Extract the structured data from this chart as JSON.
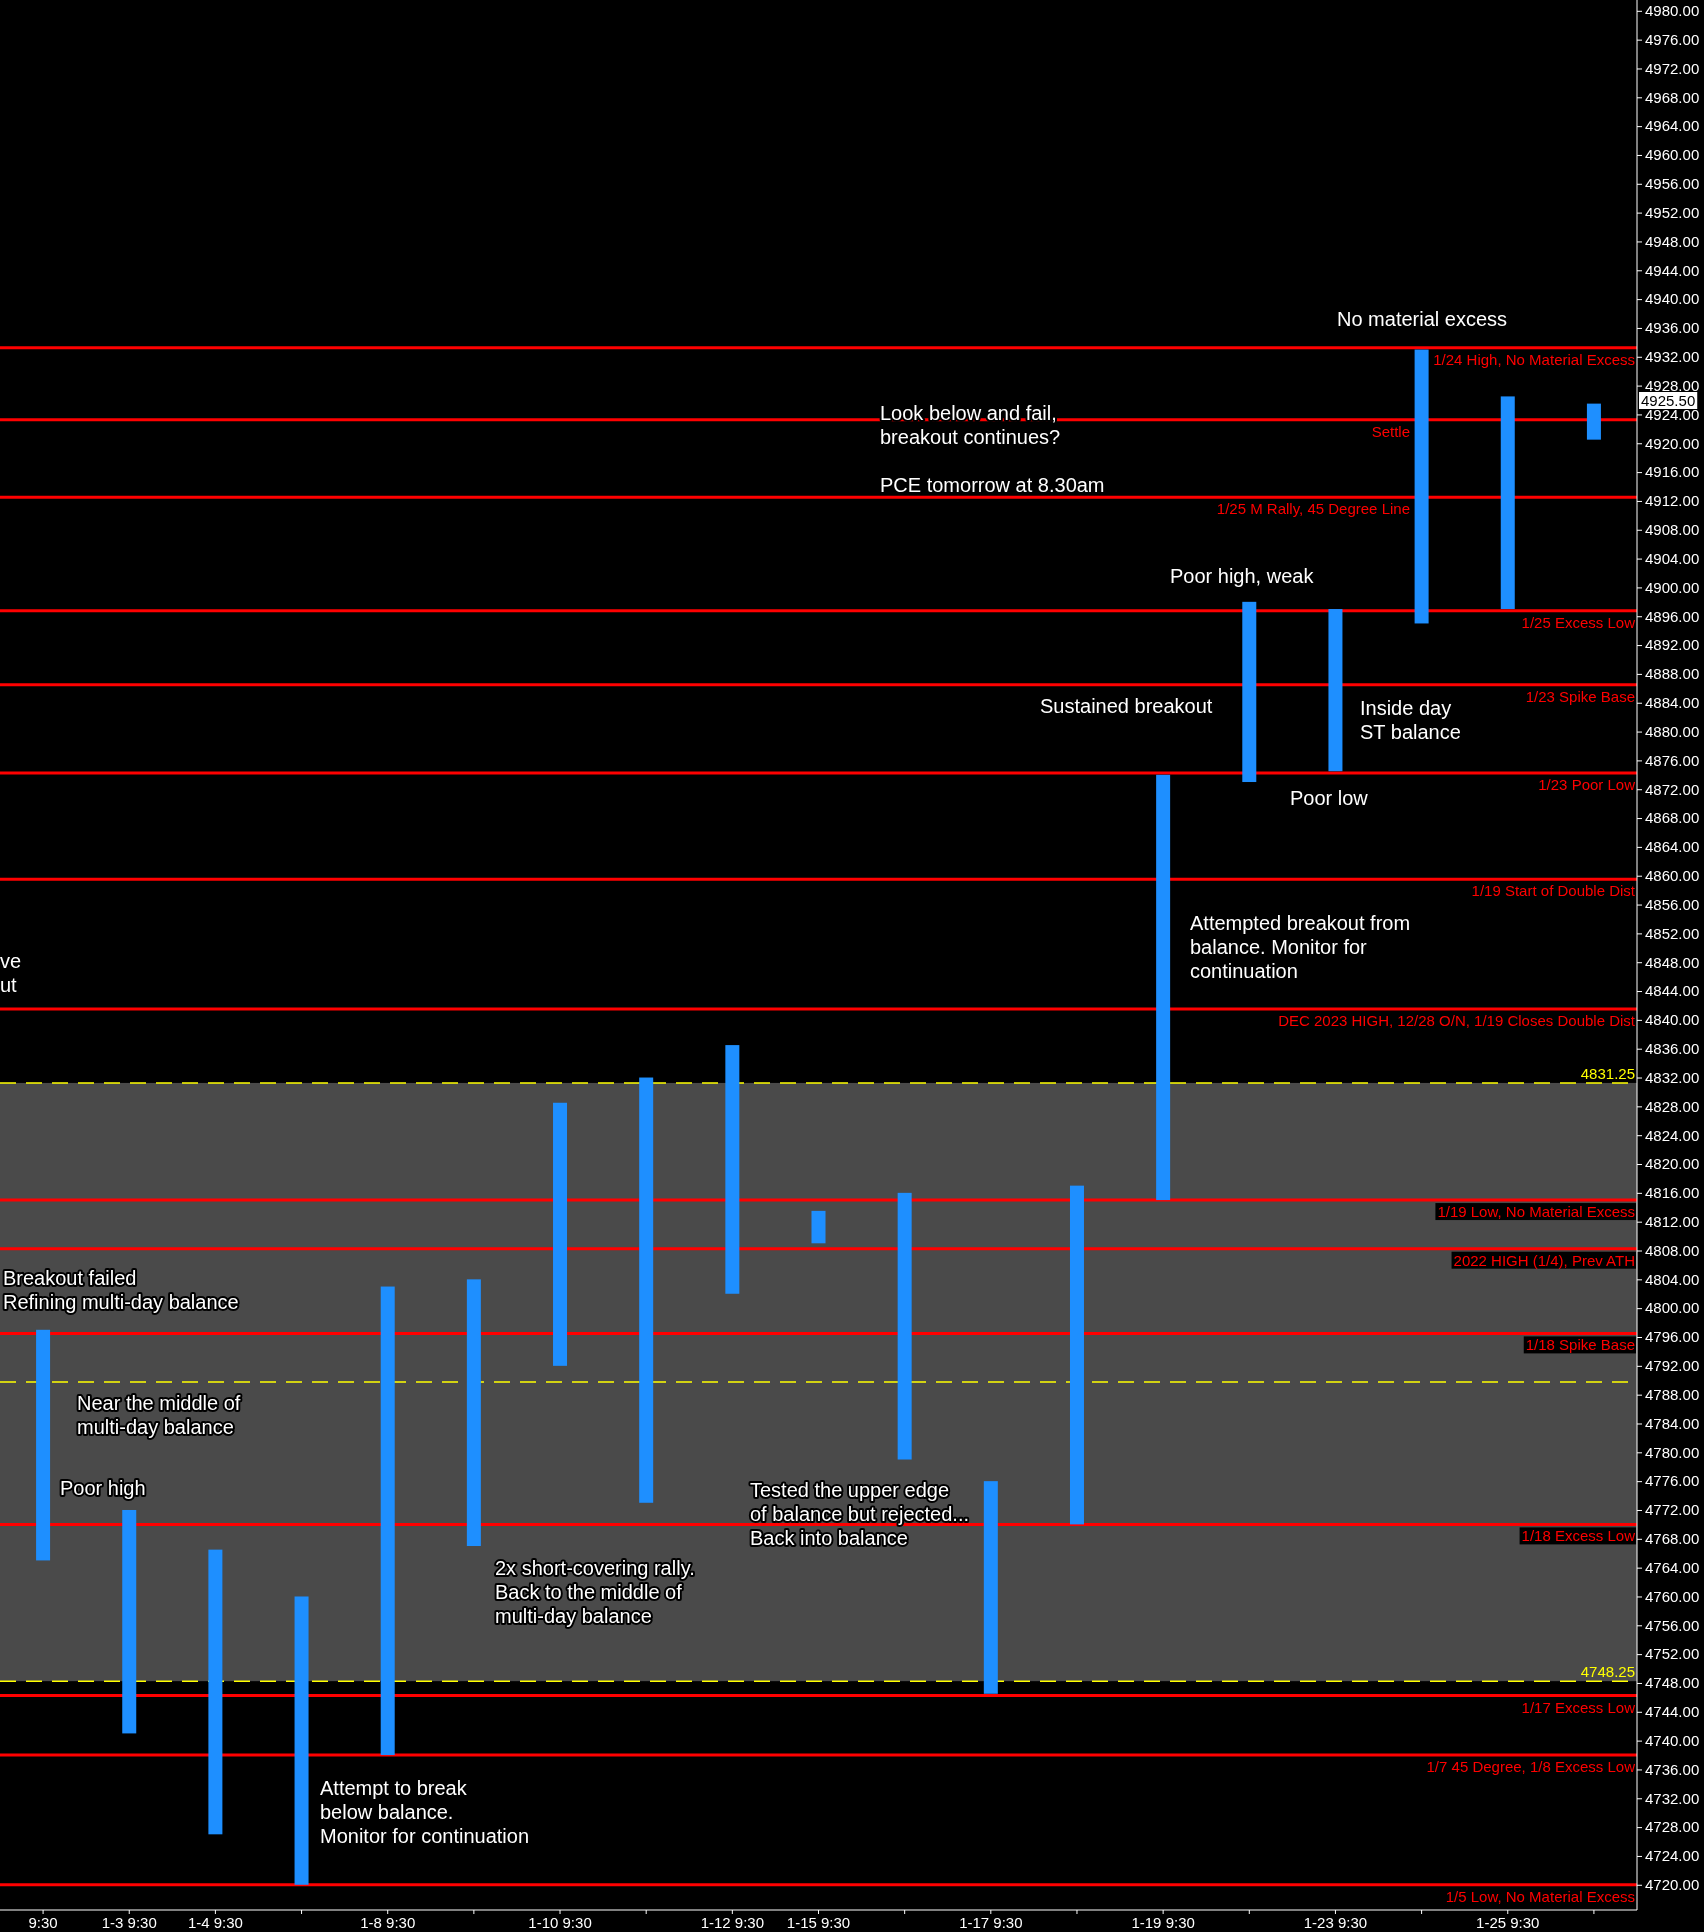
{
  "chart_data": {
    "type": "bar",
    "categories": [
      "9:30",
      "1-3 9:30",
      "1-4 9:30",
      null,
      "1-8 9:30",
      null,
      "1-10 9:30",
      null,
      "1-12 9:30",
      "1-15 9:30",
      null,
      "1-17 9:30",
      null,
      "1-19 9:30",
      null,
      "1-23 9:30",
      null,
      "1-25 9:30",
      null
    ],
    "base": [
      4765,
      4741,
      4727,
      4720,
      4738,
      4767,
      4792,
      4773,
      4802,
      4809,
      4779,
      4746.5,
      4770,
      4815,
      4873,
      4874.5,
      4895,
      4897,
      4920.5
    ],
    "values": [
      32,
      31,
      39.5,
      40,
      65,
      37,
      36.5,
      59,
      34.5,
      4.5,
      37,
      29.5,
      47,
      59,
      25,
      22.5,
      38,
      29.5,
      5
    ],
    "color": "#1e8fff",
    "ylim": [
      4716.5,
      4981.5
    ],
    "yticks": [
      {
        "value": 4720,
        "label": "4720.00"
      },
      {
        "value": 4724,
        "label": "4724.00"
      },
      {
        "value": 4728,
        "label": "4728.00"
      },
      {
        "value": 4732,
        "label": "4732.00"
      },
      {
        "value": 4736,
        "label": "4736.00"
      },
      {
        "value": 4740,
        "label": "4740.00"
      },
      {
        "value": 4744,
        "label": "4744.00"
      },
      {
        "value": 4748,
        "label": "4748.00"
      },
      {
        "value": 4752,
        "label": "4752.00"
      },
      {
        "value": 4756,
        "label": "4756.00"
      },
      {
        "value": 4760,
        "label": "4760.00"
      },
      {
        "value": 4764,
        "label": "4764.00"
      },
      {
        "value": 4768,
        "label": "4768.00"
      },
      {
        "value": 4772,
        "label": "4772.00"
      },
      {
        "value": 4776,
        "label": "4776.00"
      },
      {
        "value": 4780,
        "label": "4780.00"
      },
      {
        "value": 4784,
        "label": "4784.00"
      },
      {
        "value": 4788,
        "label": "4788.00"
      },
      {
        "value": 4792,
        "label": "4792.00"
      },
      {
        "value": 4796,
        "label": "4796.00"
      },
      {
        "value": 4800,
        "label": "4800.00"
      },
      {
        "value": 4804,
        "label": "4804.00"
      },
      {
        "value": 4808,
        "label": "4808.00"
      },
      {
        "value": 4812,
        "label": "4812.00"
      },
      {
        "value": 4816,
        "label": "4816.00"
      },
      {
        "value": 4820,
        "label": "4820.00"
      },
      {
        "value": 4824,
        "label": "4824.00"
      },
      {
        "value": 4828,
        "label": "4828.00"
      },
      {
        "value": 4832,
        "label": "4832.00"
      },
      {
        "value": 4836,
        "label": "4836.00"
      },
      {
        "value": 4840,
        "label": "4840.00"
      },
      {
        "value": 4844,
        "label": "4844.00"
      },
      {
        "value": 4848,
        "label": "4848.00"
      },
      {
        "value": 4852,
        "label": "4852.00"
      },
      {
        "value": 4856,
        "label": "4856.00"
      },
      {
        "value": 4860,
        "label": "4860.00"
      },
      {
        "value": 4864,
        "label": "4864.00"
      },
      {
        "value": 4868,
        "label": "4868.00"
      },
      {
        "value": 4872,
        "label": "4872.00"
      },
      {
        "value": 4876,
        "label": "4876.00"
      },
      {
        "value": 4880,
        "label": "4880.00"
      },
      {
        "value": 4884,
        "label": "4884.00"
      },
      {
        "value": 4888,
        "label": "4888.00"
      },
      {
        "value": 4892,
        "label": "4892.00"
      },
      {
        "value": 4896,
        "label": "4896.00"
      },
      {
        "value": 4900,
        "label": "4900.00"
      },
      {
        "value": 4904,
        "label": "4904.00"
      },
      {
        "value": 4908,
        "label": "4908.00"
      },
      {
        "value": 4912,
        "label": "4912.00"
      },
      {
        "value": 4916,
        "label": "4916.00"
      },
      {
        "value": 4920,
        "label": "4920.00"
      },
      {
        "value": 4924,
        "label": "4924.00"
      },
      {
        "value": 4928,
        "label": "4928.00"
      },
      {
        "value": 4932,
        "label": "4932.00"
      },
      {
        "value": 4936,
        "label": "4936.00"
      },
      {
        "value": 4940,
        "label": "4940.00"
      },
      {
        "value": 4944,
        "label": "4944.00"
      },
      {
        "value": 4948,
        "label": "4948.00"
      },
      {
        "value": 4952,
        "label": "4952.00"
      },
      {
        "value": 4956,
        "label": "4956.00"
      },
      {
        "value": 4960,
        "label": "4960.00"
      },
      {
        "value": 4964,
        "label": "4964.00"
      },
      {
        "value": 4968,
        "label": "4968.00"
      },
      {
        "value": 4972,
        "label": "4972.00"
      },
      {
        "value": 4976,
        "label": "4976.00"
      },
      {
        "value": 4980,
        "label": "4980.00"
      }
    ],
    "bands": [
      {
        "axis": "y",
        "from": 4748.25,
        "to": 4831.25,
        "color": "#4a4a4a"
      }
    ],
    "ref_lines": [
      {
        "axis": "y",
        "value": 4933.25,
        "label": "1/24 High, No Material Excess",
        "color": "#ff0000",
        "line_style": "solid"
      },
      {
        "axis": "y",
        "value": 4923.25,
        "label": "Settle",
        "color": "#ff0000",
        "line_style": "solid"
      },
      {
        "axis": "y",
        "value": 4912.5,
        "label": "1/25 M Rally, 45 Degree Line",
        "color": "#ff0000",
        "line_style": "solid"
      },
      {
        "axis": "y",
        "value": 4896.75,
        "label": "1/25 Excess Low",
        "color": "#ff0000",
        "line_style": "solid"
      },
      {
        "axis": "y",
        "value": 4886.5,
        "label": "1/23 Spike Base",
        "color": "#ff0000",
        "line_style": "solid"
      },
      {
        "axis": "y",
        "value": 4874.25,
        "label": "1/23 Poor Low",
        "color": "#ff0000",
        "line_style": "solid"
      },
      {
        "axis": "y",
        "value": 4859.5,
        "label": "1/19 Start of Double Dist",
        "color": "#ff0000",
        "line_style": "solid"
      },
      {
        "axis": "y",
        "value": 4841.5,
        "label": "DEC 2023 HIGH, 12/28 O/N, 1/19 Closes Double Dist",
        "color": "#ff0000",
        "line_style": "solid"
      },
      {
        "axis": "y",
        "value": 4831.25,
        "label": "4831.25",
        "color": "#ffff00",
        "line_style": "dashed"
      },
      {
        "axis": "y",
        "value": 4815,
        "label": "1/19 Low, No Material Excess",
        "color": "#ff0000",
        "line_style": "solid"
      },
      {
        "axis": "y",
        "value": 4808.25,
        "label": "2022 HIGH (1/4), Prev ATH",
        "color": "#ff0000",
        "line_style": "solid"
      },
      {
        "axis": "y",
        "value": 4796.5,
        "label": "1/18 Spike Base",
        "color": "#ff0000",
        "line_style": "solid"
      },
      {
        "axis": "y",
        "value": 4789.75,
        "label": null,
        "color": "#ffff00",
        "line_style": "dashed"
      },
      {
        "axis": "y",
        "value": 4770,
        "label": "1/18 Excess Low",
        "color": "#ff0000",
        "line_style": "solid"
      },
      {
        "axis": "y",
        "value": 4748.25,
        "label": "4748.25",
        "color": "#ffff00",
        "line_style": "dashed"
      },
      {
        "axis": "y",
        "value": 4746.25,
        "label": "1/17 Excess Low",
        "color": "#ff0000",
        "line_style": "solid"
      },
      {
        "axis": "y",
        "value": 4738,
        "label": "1/7 45 Degree, 1/8 Excess Low",
        "color": "#ff0000",
        "line_style": "solid"
      },
      {
        "axis": "y",
        "value": 4720,
        "label": "1/5 Low, No Material Excess",
        "color": "#ff0000",
        "line_style": "solid"
      }
    ],
    "annotations": [
      "4925.50",
      "No material excess",
      "Poor high, weak",
      "Sustained breakout",
      "Poor low",
      "Inside day\nST balance",
      "Look below and fail,\nbreakout continues?\n\nPCE tomorrow at 8.30am",
      "Attempted breakout from\nbalance. Monitor for\ncontinuation",
      "ve\nut",
      "Breakout failed\nRefining multi-day balance",
      "Near the middle of\nmulti-day balance",
      "Poor high",
      "2x short-covering rally.\nBack to the middle of\nmulti-day balance",
      "Tested the upper edge\nof balance but rejected...\nBack into balance",
      "Attempt to break\nbelow balance.\nMonitor for continuation"
    ]
  }
}
